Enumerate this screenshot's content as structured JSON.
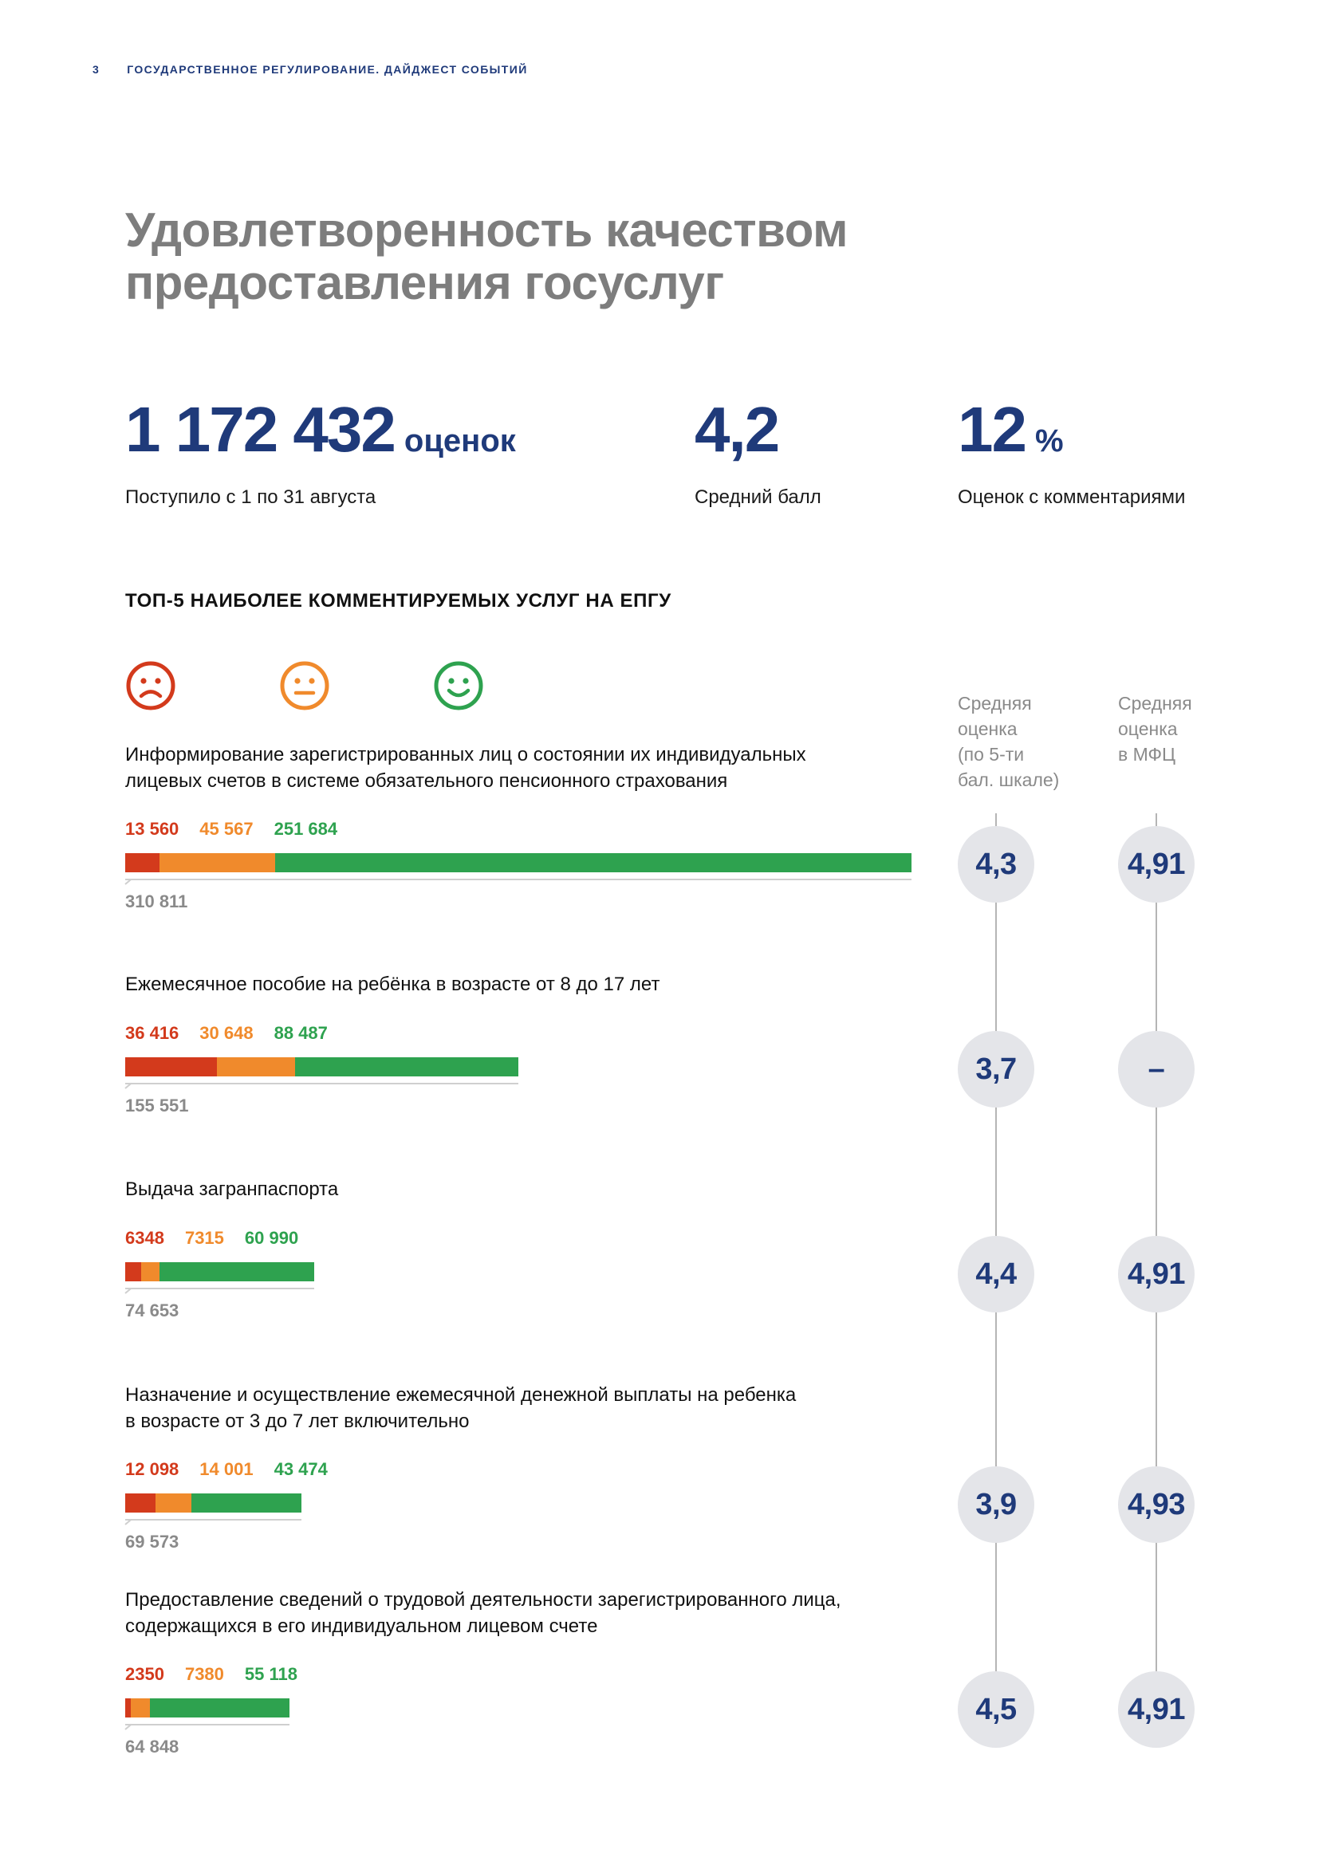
{
  "header": {
    "page": "3",
    "title": "ГОСУДАРСТВЕННОЕ РЕГУЛИРОВАНИЕ. ДАЙДЖЕСТ СОБЫТИЙ"
  },
  "title": "Удовлетворенность качеством\nпредоставления госуслуг",
  "stats": [
    {
      "value": "1 172 432",
      "unit": "оценок",
      "label": "Поступило с 1 по 31 августа"
    },
    {
      "value": "4,2",
      "unit": "",
      "label": "Средний балл"
    },
    {
      "value": "12",
      "unit": "%",
      "label": "Оценок с комментариями"
    }
  ],
  "subhead": "ТОП-5 НАИБОЛЕЕ КОММЕНТИРУЕМЫХ УСЛУГ НА ЕПГУ",
  "faces": [
    {
      "icon": "sad-face-icon",
      "color": "#d33a1c"
    },
    {
      "icon": "neutral-face-icon",
      "color": "#f08a2c"
    },
    {
      "icon": "happy-face-icon",
      "color": "#2ea24f"
    }
  ],
  "columns": {
    "avg": "Средняя\nоценка\n(по 5-ти\nбал. шкале)",
    "mfc": "Средняя\nоценка\nв МФЦ"
  },
  "colors": {
    "negative": "#d33a1c",
    "neutral": "#f08a2c",
    "positive": "#2ea24f",
    "accent": "#1f3a7a"
  },
  "services": [
    {
      "title": "Информирование зарегистрированных лиц о состоянии их индивидуальных\nлицевых счетов в системе обязательного пенсионного страхования",
      "negative": 13560,
      "neutral": 45567,
      "positive": 251684,
      "negative_label": "13 560",
      "neutral_label": "45 567",
      "positive_label": "251 684",
      "total": "310 811",
      "avg": "4,3",
      "mfc": "4,91"
    },
    {
      "title": "Ежемесячное пособие на ребёнка в возрасте от 8 до 17 лет",
      "negative": 36416,
      "neutral": 30648,
      "positive": 88487,
      "negative_label": "36 416",
      "neutral_label": "30 648",
      "positive_label": "88 487",
      "total": "155 551",
      "avg": "3,7",
      "mfc": "–"
    },
    {
      "title": "Выдача загранпаспорта",
      "negative": 6348,
      "neutral": 7315,
      "positive": 60990,
      "negative_label": "6348",
      "neutral_label": "7315",
      "positive_label": "60 990",
      "total": "74 653",
      "avg": "4,4",
      "mfc": "4,91"
    },
    {
      "title": "Назначение и осуществление ежемесячной денежной выплаты на ребенка\nв возрасте от 3 до 7 лет включительно",
      "negative": 12098,
      "neutral": 14001,
      "positive": 43474,
      "negative_label": "12 098",
      "neutral_label": "14 001",
      "positive_label": "43 474",
      "total": "69 573",
      "avg": "3,9",
      "mfc": "4,93"
    },
    {
      "title": "Предоставление сведений о трудовой деятельности зарегистрированного лица,\nсодержащихся в его индивидуальном лицевом счете",
      "negative": 2350,
      "neutral": 7380,
      "positive": 55118,
      "negative_label": "2350",
      "neutral_label": "7380",
      "positive_label": "55 118",
      "total": "64 848",
      "avg": "4,5",
      "mfc": "4,91"
    }
  ]
}
